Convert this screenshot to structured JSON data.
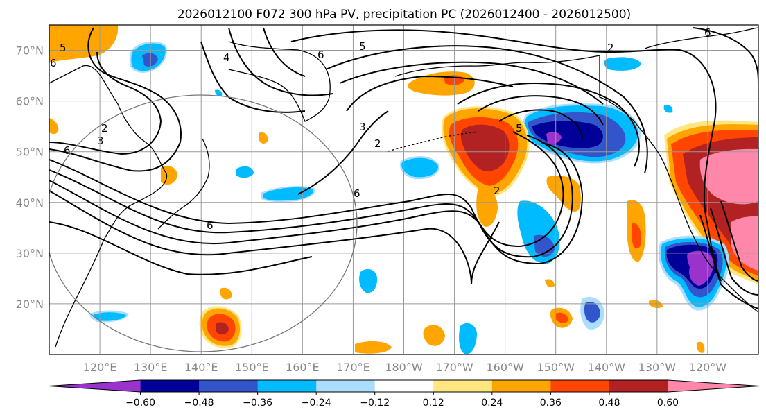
{
  "title": "2026012100 F072 300 hPa PV, precipitation PC (2026012400 - 2026012500)",
  "map": {
    "extent_lon": [
      110,
      250
    ],
    "extent_lat": [
      10,
      75
    ],
    "lat_ticks": [
      20,
      30,
      40,
      50,
      60,
      70
    ],
    "lat_labels": [
      "20°N",
      "30°N",
      "40°N",
      "50°N",
      "60°N",
      "70°N"
    ],
    "lon_ticks": [
      120,
      130,
      140,
      150,
      160,
      170,
      180,
      190,
      200,
      210,
      220,
      230,
      240
    ],
    "lon_labels": [
      "120°E",
      "130°E",
      "140°E",
      "150°E",
      "160°E",
      "170°E",
      "180°W",
      "170°W",
      "160°W",
      "150°W",
      "140°W",
      "130°W",
      "120°W"
    ],
    "pv_contour_labels": [
      "5",
      "6",
      "4",
      "6",
      "5",
      "2",
      "6",
      "3",
      "2",
      "6",
      "6",
      "3",
      "5",
      "2",
      "2",
      "6"
    ]
  },
  "colorbar": {
    "colors": [
      "#9933cc",
      "#000099",
      "#3355cc",
      "#00bbff",
      "#aaddff",
      "#ffffff",
      "#ffe680",
      "#ffa500",
      "#ff4500",
      "#b22222",
      "#ff88aa"
    ],
    "tick_labels": [
      "−0.60",
      "−0.48",
      "−0.36",
      "−0.24",
      "−0.12",
      "0.12",
      "0.24",
      "0.36",
      "0.48",
      "0.60"
    ],
    "extend": "both"
  },
  "chart_data": {
    "type": "heatmap",
    "title": "2026012100 F072 300 hPa PV, precipitation PC (2026012400 - 2026012500)",
    "field": "precipitation PC, filled contours; 300 hPa PV, black line contours",
    "levels": [
      -0.6,
      -0.48,
      -0.36,
      -0.24,
      -0.12,
      0.12,
      0.24,
      0.36,
      0.48,
      0.6
    ],
    "projection": "equirectangular",
    "xlim": [
      110,
      250
    ],
    "ylim": [
      10,
      75
    ],
    "grid": true
  }
}
